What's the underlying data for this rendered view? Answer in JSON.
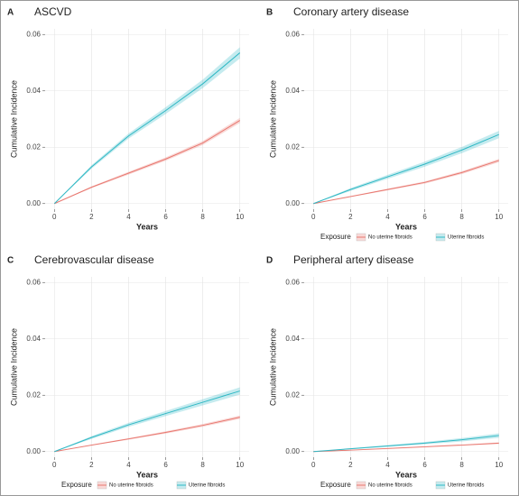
{
  "chart_data": [
    {
      "type": "line",
      "panel": "A",
      "title": "ASCVD",
      "x_label": "Years",
      "y_label": "Cumulative Incidence",
      "legend": false,
      "legend_title": "Exposure",
      "x": [
        0,
        2,
        4,
        6,
        8,
        10
      ],
      "xlim": [
        -0.5,
        10.5
      ],
      "xticks": [
        0,
        2,
        4,
        6,
        8,
        10
      ],
      "ylim": [
        -0.002,
        0.062
      ],
      "yticks": [
        {
          "value": 0,
          "label": "0.00"
        },
        {
          "value": 0.02,
          "label": "0.02"
        },
        {
          "value": 0.04,
          "label": "0.04"
        },
        {
          "value": 0.06,
          "label": "0.06"
        }
      ],
      "grid": true,
      "series": [
        {
          "name": "No uterine fibroids",
          "color": "#e8776f",
          "values": [
            0,
            0.0058,
            0.0108,
            0.0158,
            0.0215,
            0.0295
          ],
          "lower": [
            0,
            0.0055,
            0.0103,
            0.0152,
            0.0208,
            0.0286
          ],
          "upper": [
            0,
            0.0061,
            0.0113,
            0.0164,
            0.0222,
            0.0304
          ]
        },
        {
          "name": "Uterine fibroids",
          "color": "#2fb8c4",
          "values": [
            0,
            0.013,
            0.024,
            0.033,
            0.0425,
            0.0535
          ],
          "lower": [
            0,
            0.0124,
            0.0231,
            0.0318,
            0.041,
            0.0515
          ],
          "upper": [
            0,
            0.0136,
            0.0249,
            0.0342,
            0.044,
            0.0555
          ]
        }
      ]
    },
    {
      "type": "line",
      "panel": "B",
      "title": "Coronary artery disease",
      "x_label": "Years",
      "y_label": "Cumulative Incidence",
      "legend": true,
      "legend_title": "Exposure",
      "x": [
        0,
        2,
        4,
        6,
        8,
        10
      ],
      "xlim": [
        -0.5,
        10.5
      ],
      "xticks": [
        0,
        2,
        4,
        6,
        8,
        10
      ],
      "ylim": [
        -0.002,
        0.062
      ],
      "yticks": [
        {
          "value": 0,
          "label": "0.00"
        },
        {
          "value": 0.02,
          "label": "0.02"
        },
        {
          "value": 0.04,
          "label": "0.04"
        },
        {
          "value": 0.06,
          "label": "0.06"
        }
      ],
      "grid": true,
      "series": [
        {
          "name": "No uterine fibroids",
          "color": "#e8776f",
          "values": [
            0,
            0.0025,
            0.005,
            0.0075,
            0.011,
            0.0153
          ],
          "lower": [
            0,
            0.0023,
            0.0047,
            0.0071,
            0.0105,
            0.0147
          ],
          "upper": [
            0,
            0.0027,
            0.0053,
            0.0079,
            0.0115,
            0.0159
          ]
        },
        {
          "name": "Uterine fibroids",
          "color": "#2fb8c4",
          "values": [
            0,
            0.005,
            0.0095,
            0.014,
            0.019,
            0.0245
          ],
          "lower": [
            0,
            0.0045,
            0.0088,
            0.0131,
            0.0179,
            0.0232
          ],
          "upper": [
            0,
            0.0055,
            0.0102,
            0.0149,
            0.0201,
            0.0258
          ]
        }
      ]
    },
    {
      "type": "line",
      "panel": "C",
      "title": "Cerebrovascular disease",
      "x_label": "Years",
      "y_label": "Cumulative Incidence",
      "legend": true,
      "legend_title": "Exposure",
      "x": [
        0,
        2,
        4,
        6,
        8,
        10
      ],
      "xlim": [
        -0.5,
        10.5
      ],
      "xticks": [
        0,
        2,
        4,
        6,
        8,
        10
      ],
      "ylim": [
        -0.002,
        0.062
      ],
      "yticks": [
        {
          "value": 0,
          "label": "0.00"
        },
        {
          "value": 0.02,
          "label": "0.02"
        },
        {
          "value": 0.04,
          "label": "0.04"
        },
        {
          "value": 0.06,
          "label": "0.06"
        }
      ],
      "grid": true,
      "series": [
        {
          "name": "No uterine fibroids",
          "color": "#e8776f",
          "values": [
            0,
            0.0023,
            0.0045,
            0.0068,
            0.0093,
            0.0122
          ],
          "lower": [
            0,
            0.0021,
            0.0042,
            0.0064,
            0.0088,
            0.0116
          ],
          "upper": [
            0,
            0.0025,
            0.0048,
            0.0072,
            0.0098,
            0.0128
          ]
        },
        {
          "name": "Uterine fibroids",
          "color": "#2fb8c4",
          "values": [
            0,
            0.005,
            0.0095,
            0.0135,
            0.0175,
            0.0215
          ],
          "lower": [
            0,
            0.0045,
            0.0088,
            0.0126,
            0.0164,
            0.0202
          ],
          "upper": [
            0,
            0.0055,
            0.0102,
            0.0144,
            0.0186,
            0.0228
          ]
        }
      ]
    },
    {
      "type": "line",
      "panel": "D",
      "title": "Peripheral artery disease",
      "x_label": "Years",
      "y_label": "Cumulative Incidence",
      "legend": true,
      "legend_title": "Exposure",
      "x": [
        0,
        2,
        4,
        6,
        8,
        10
      ],
      "xlim": [
        -0.5,
        10.5
      ],
      "xticks": [
        0,
        2,
        4,
        6,
        8,
        10
      ],
      "ylim": [
        -0.002,
        0.062
      ],
      "yticks": [
        {
          "value": 0,
          "label": "0.00"
        },
        {
          "value": 0.02,
          "label": "0.02"
        },
        {
          "value": 0.04,
          "label": "0.04"
        },
        {
          "value": 0.06,
          "label": "0.06"
        }
      ],
      "grid": true,
      "series": [
        {
          "name": "No uterine fibroids",
          "color": "#e8776f",
          "values": [
            0,
            0.0005,
            0.0011,
            0.0017,
            0.0023,
            0.003
          ],
          "lower": [
            0,
            0.0004,
            0.0009,
            0.0015,
            0.0021,
            0.0027
          ],
          "upper": [
            0,
            0.0006,
            0.0013,
            0.0019,
            0.0025,
            0.0033
          ]
        },
        {
          "name": "Uterine fibroids",
          "color": "#2fb8c4",
          "values": [
            0,
            0.001,
            0.002,
            0.003,
            0.0042,
            0.0057
          ],
          "lower": [
            0,
            0.0008,
            0.0017,
            0.0026,
            0.0036,
            0.0049
          ],
          "upper": [
            0,
            0.0012,
            0.0023,
            0.0034,
            0.0048,
            0.0065
          ]
        }
      ]
    }
  ]
}
